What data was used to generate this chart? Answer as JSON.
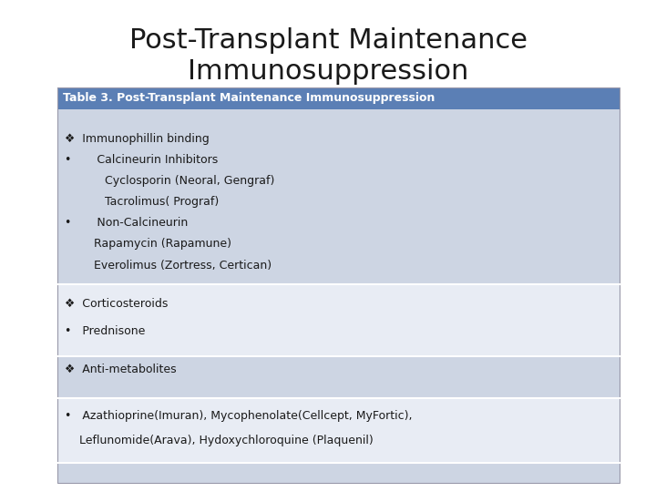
{
  "title_line1": "Post-Transplant Maintenance",
  "title_line2": "Immunosuppression",
  "title_fontsize": 22,
  "title_color": "#1a1a1a",
  "background_color": "#ffffff",
  "header_text": "Table 3. Post-Transplant Maintenance Immunosuppression",
  "header_bg": "#5b7fb5",
  "header_text_color": "#ffffff",
  "header_fontsize": 9,
  "rows": [
    {
      "bg": "#cdd5e3",
      "lines": [
        "❖  Immunophillin binding",
        "•       Calcineurin Inhibitors",
        "           Cyclosporin (Neoral, Gengraf)",
        "           Tacrolimus( Prograf)",
        "•       Non-Calcineurin",
        "        Rapamycin (Rapamune)",
        "        Everolimus (Zortress, Certican)"
      ]
    },
    {
      "bg": "#e8ecf4",
      "lines": [
        "❖  Corticosteroids",
        "•   Prednisone"
      ]
    },
    {
      "bg": "#cdd5e3",
      "lines": [
        "❖  Anti-metabolites"
      ]
    },
    {
      "bg": "#e8ecf4",
      "lines": [
        "•   Azathioprine(Imuran), Mycophenolate(Cellcept, MyFortic),",
        "    Leflunomide(Arava), Hydoxychloroquine (Plaquenil)"
      ]
    },
    {
      "bg": "#cdd5e3",
      "lines": []
    }
  ],
  "cell_fontsize": 9,
  "cell_text_color": "#1a1a1a",
  "fig_width": 7.2,
  "fig_height": 5.4,
  "fig_dpi": 100
}
